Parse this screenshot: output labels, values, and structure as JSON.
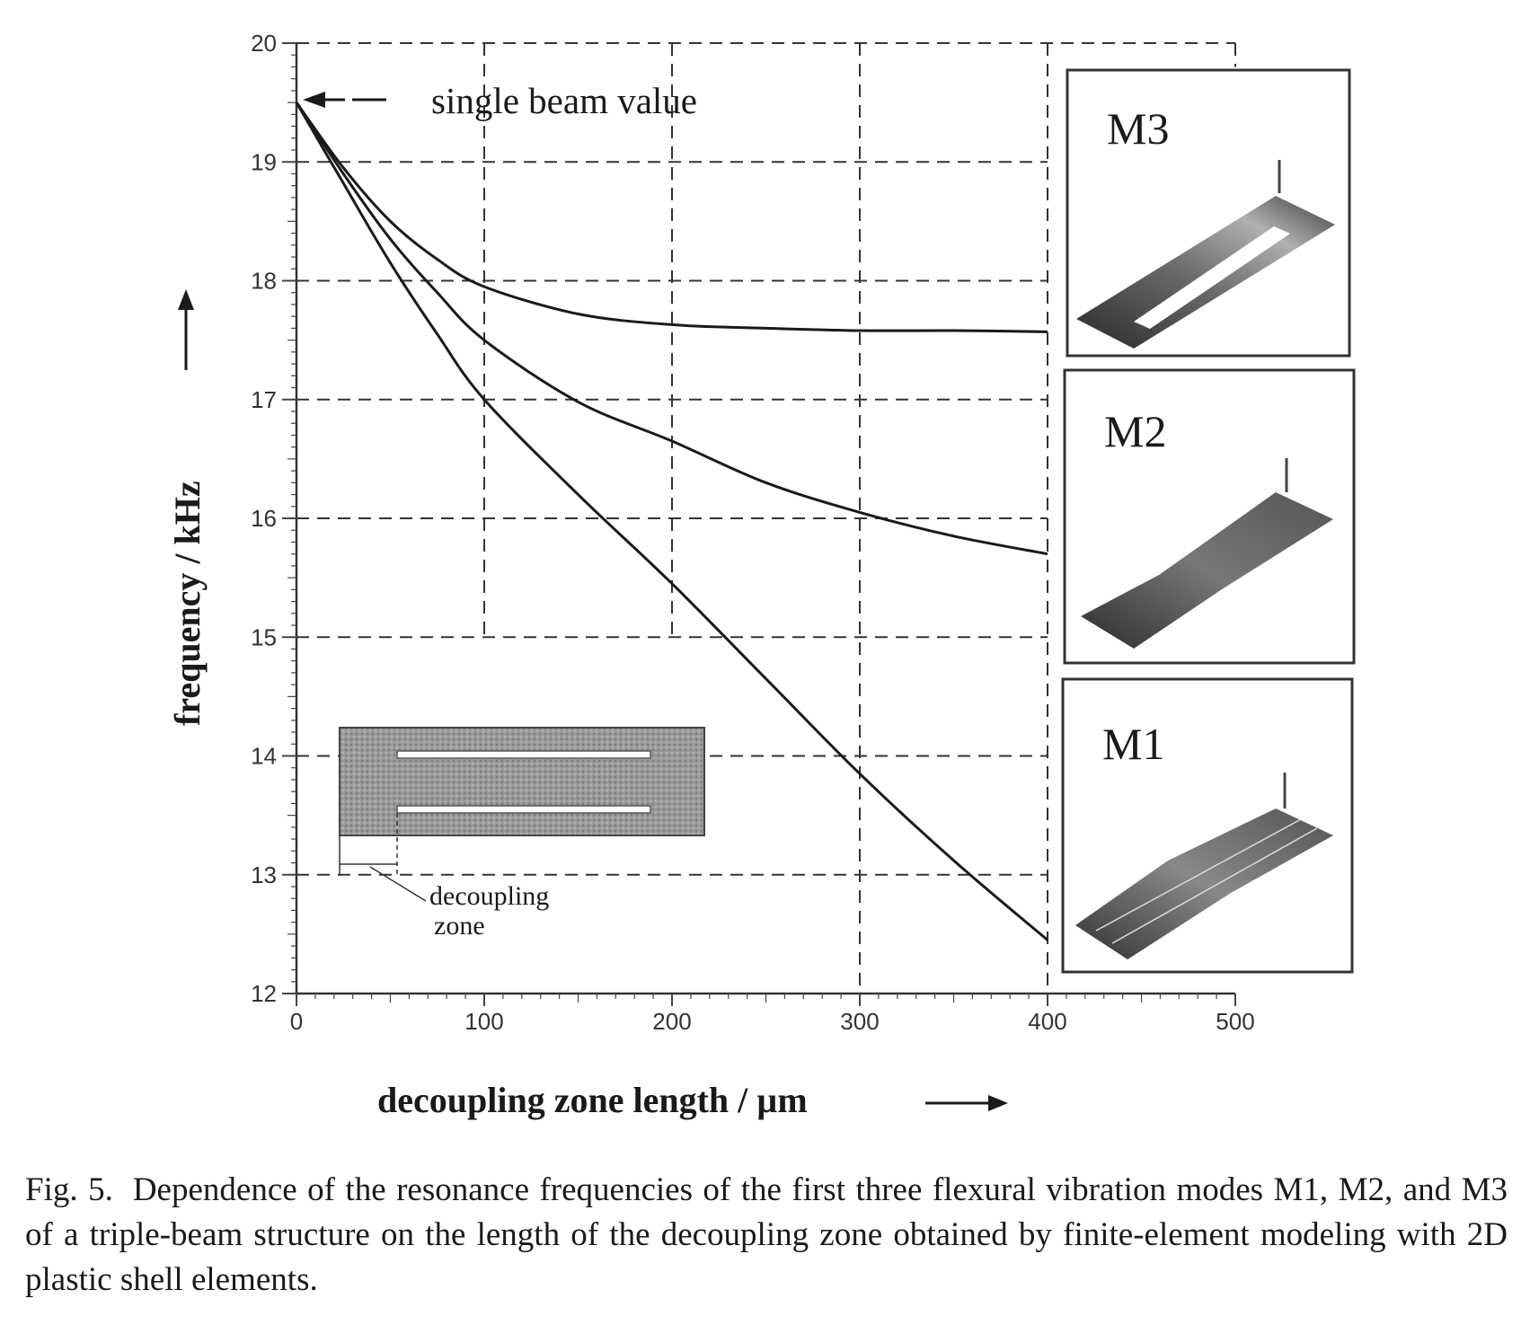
{
  "chart_data": {
    "type": "line",
    "title": "",
    "xlabel": "decoupling zone length / µm",
    "ylabel": "frequency / kHz",
    "xlim": [
      0,
      500
    ],
    "ylim": [
      12,
      20
    ],
    "x_ticks": [
      "0",
      "100",
      "200",
      "300",
      "400",
      "500"
    ],
    "y_ticks": [
      "12",
      "13",
      "14",
      "15",
      "16",
      "17",
      "18",
      "19",
      "20"
    ],
    "grid": "dashed",
    "x": [
      0,
      25,
      50,
      75,
      100,
      150,
      200,
      250,
      300,
      350,
      400
    ],
    "series": [
      {
        "name": "M3",
        "values": [
          19.5,
          18.95,
          18.5,
          18.18,
          17.95,
          17.72,
          17.63,
          17.6,
          17.58,
          17.58,
          17.57
        ]
      },
      {
        "name": "M2",
        "values": [
          19.5,
          18.9,
          18.35,
          17.9,
          17.5,
          16.98,
          16.65,
          16.3,
          16.05,
          15.85,
          15.7
        ]
      },
      {
        "name": "M1",
        "values": [
          19.5,
          18.82,
          18.15,
          17.55,
          17.0,
          16.2,
          15.45,
          14.65,
          13.85,
          13.12,
          12.45
        ]
      }
    ],
    "annotations": {
      "single_beam": "single beam value",
      "decoupling_zone": [
        "decoupling",
        "zone"
      ]
    },
    "mode_labels": [
      "M3",
      "M2",
      "M1"
    ]
  },
  "caption": {
    "figno": "Fig. 5.",
    "text": "Dependence of the resonance frequencies of the first three flexural vibration modes M1, M2, and M3 of a triple-beam structure on the length of the decoupling zone obtained by finite-element modeling with 2D plastic shell elements."
  }
}
